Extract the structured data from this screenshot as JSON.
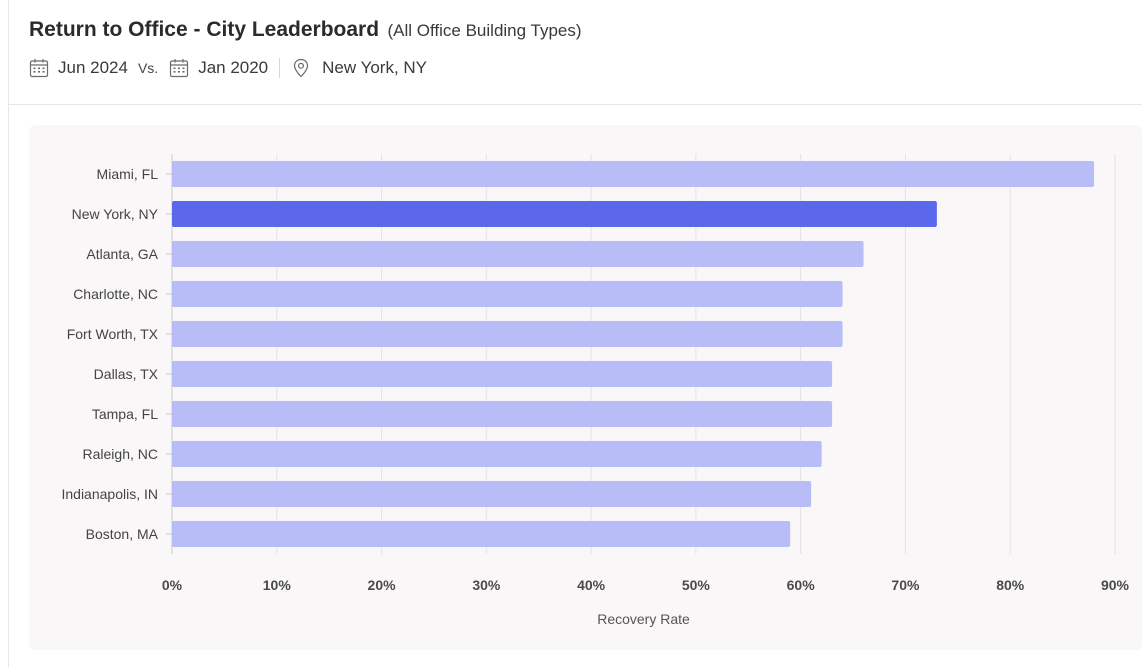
{
  "header": {
    "title": "Return to Office - City Leaderboard",
    "subtitle": "(All Office Building Types)",
    "period": "Jun 2024",
    "vs_label": "Vs.",
    "compare_period": "Jan 2020",
    "location": "New York, NY"
  },
  "chart_data": {
    "type": "bar",
    "orientation": "horizontal",
    "categories": [
      "Miami, FL",
      "New York, NY",
      "Atlanta, GA",
      "Charlotte, NC",
      "Fort Worth, TX",
      "Dallas, TX",
      "Tampa, FL",
      "Raleigh, NC",
      "Indianapolis, IN",
      "Boston, MA"
    ],
    "values": [
      88,
      73,
      66,
      64,
      64,
      63,
      63,
      62,
      61,
      59
    ],
    "highlight": "New York, NY",
    "xlabel": "Recovery Rate",
    "ylabel": "",
    "xlim": [
      0,
      90
    ],
    "xticks": [
      "0%",
      "10%",
      "20%",
      "30%",
      "40%",
      "50%",
      "60%",
      "70%",
      "80%",
      "90%"
    ],
    "grid": true,
    "colors": {
      "bar": "#b8bcf7",
      "highlight_bar": "#5b68ec",
      "grid": "#e4e2e6",
      "axis": "#c9c9cf"
    }
  }
}
